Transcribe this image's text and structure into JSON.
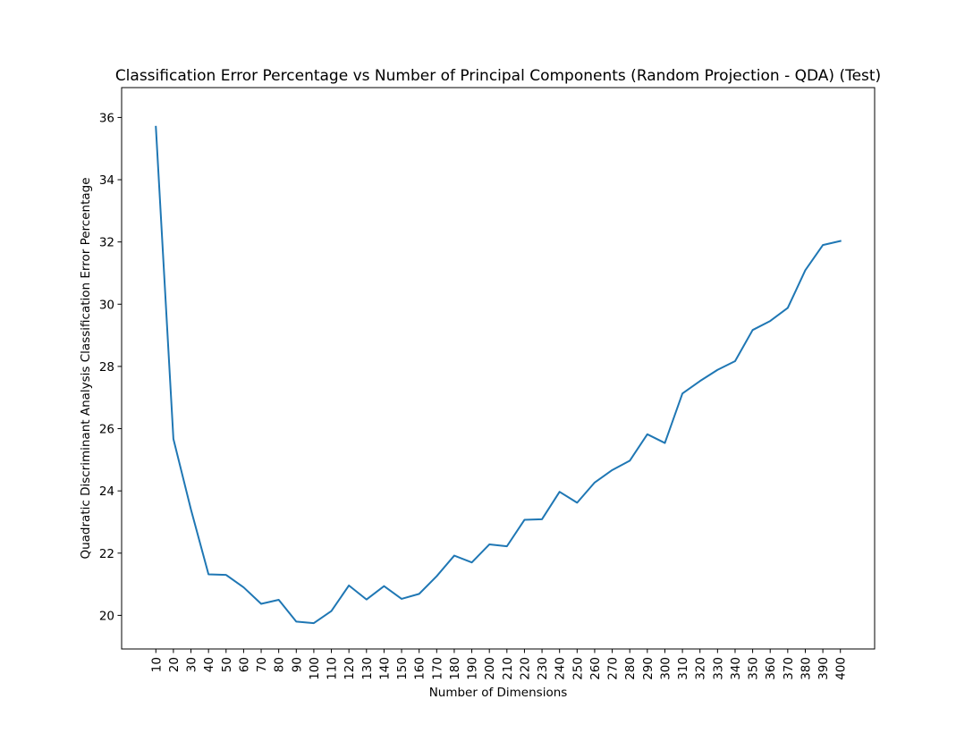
{
  "chart_data": {
    "type": "line",
    "title": "Classification Error Percentage vs Number of Principal Components (Random Projection - QDA) (Test)",
    "xlabel": "Number of Dimensions",
    "ylabel": "Quadratic Discriminant Analysis Classification Error Percentage",
    "x": [
      10,
      20,
      30,
      40,
      50,
      60,
      70,
      80,
      90,
      100,
      110,
      120,
      130,
      140,
      150,
      160,
      170,
      180,
      190,
      200,
      210,
      220,
      230,
      240,
      250,
      260,
      270,
      280,
      290,
      300,
      310,
      320,
      330,
      340,
      350,
      360,
      370,
      380,
      390,
      400
    ],
    "series": [
      {
        "values": [
          35.7,
          25.67,
          23.4,
          21.32,
          21.3,
          20.9,
          20.37,
          20.5,
          19.8,
          19.75,
          20.14,
          20.96,
          20.51,
          20.94,
          20.53,
          20.69,
          21.26,
          21.92,
          21.7,
          22.28,
          22.22,
          23.07,
          23.09,
          23.97,
          23.62,
          24.27,
          24.67,
          24.97,
          25.82,
          25.54,
          27.13,
          27.53,
          27.89,
          28.17,
          29.17,
          29.46,
          29.88,
          31.09,
          31.9,
          32.03
        ],
        "color": "#1f77b4"
      }
    ],
    "ylim": [
      18.92,
      36.96
    ],
    "yticks": [
      20,
      22,
      24,
      26,
      28,
      30,
      32,
      34,
      36
    ],
    "grid": false
  }
}
